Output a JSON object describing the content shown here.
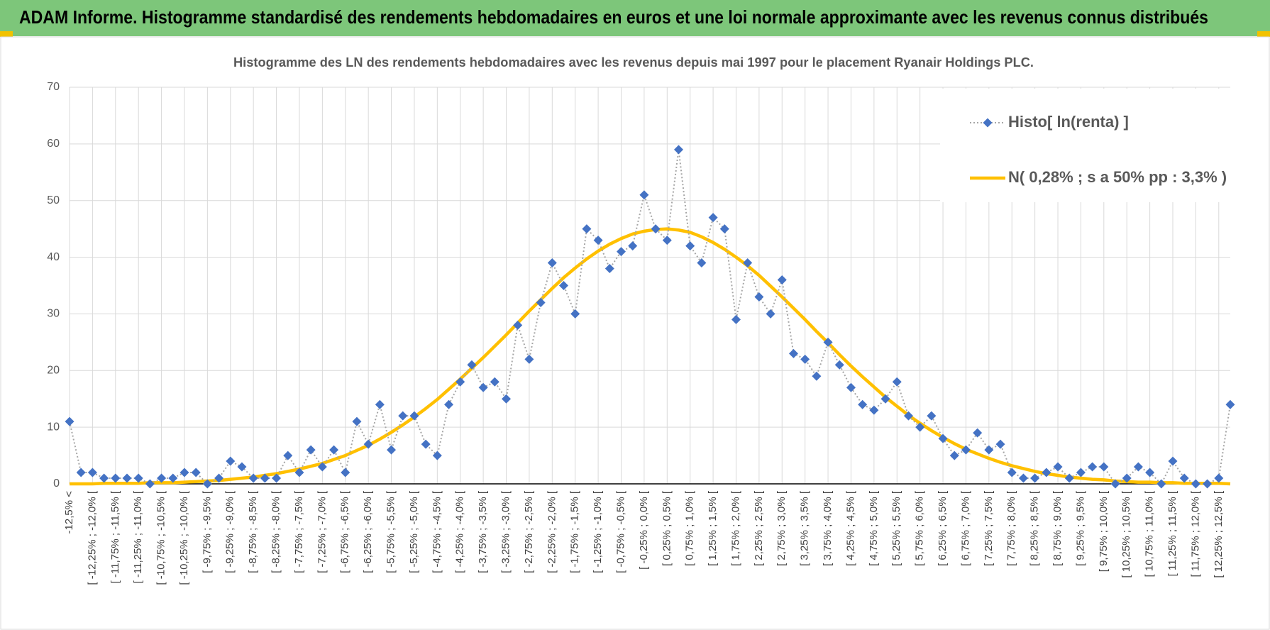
{
  "page_title": "ADAM Informe. Histogramme standardisé des rendements hebdomadaires en euros et une loi normale approximante avec les revenus connus distribués",
  "chart_data": {
    "type": "line",
    "title": "Histogramme des LN des rendements hebdomadaires avec les revenus depuis mai 1997 pour le placement Ryanair Holdings PLC.",
    "categories": [
      "-12,5% <",
      null,
      "[ -12,25% ; -12,0% [",
      null,
      "[ -11,75% ; -11,5% [",
      null,
      "[ -11,25% ; -11,0% [",
      null,
      "[ -10,75% ; -10,5% [",
      null,
      "[ -10,25% ; -10,0% [",
      null,
      "[ -9,75% ; -9,5% [",
      null,
      "[ -9,25% ; -9,0% [",
      null,
      "[ -8,75% ; -8,5% [",
      null,
      "[ -8,25% ; -8,0% [",
      null,
      "[ -7,75% ; -7,5% [",
      null,
      "[ -7,25% ; -7,0% [",
      null,
      "[ -6,75% ; -6,5% [",
      null,
      "[ -6,25% ; -6,0% [",
      null,
      "[ -5,75% ; -5,5% [",
      null,
      "[ -5,25% ; -5,0% [",
      null,
      "[ -4,75% ; -4,5% [",
      null,
      "[ -4,25% ; -4,0% [",
      null,
      "[ -3,75% ; -3,5% [",
      null,
      "[ -3,25% ; -3,0% [",
      null,
      "[ -2,75% ; -2,5% [",
      null,
      "[ -2,25% ; -2,0% [",
      null,
      "[ -1,75% ; -1,5% [",
      null,
      "[ -1,25% ; -1,0% [",
      null,
      "[ -0,75% ; -0,5% [",
      null,
      "[ -0,25% ; 0,0% [",
      null,
      "[ 0,25% ; 0,5% [",
      null,
      "[ 0,75% ; 1,0% [",
      null,
      "[ 1,25% ; 1,5% [",
      null,
      "[ 1,75% ; 2,0% [",
      null,
      "[ 2,25% ; 2,5% [",
      null,
      "[ 2,75% ; 3,0% [",
      null,
      "[ 3,25% ; 3,5% [",
      null,
      "[ 3,75% ; 4,0% [",
      null,
      "[ 4,25% ; 4,5% [",
      null,
      "[ 4,75% ; 5,0% [",
      null,
      "[ 5,25% ; 5,5% [",
      null,
      "[ 5,75% ; 6,0% [",
      null,
      "[ 6,25% ; 6,5% [",
      null,
      "[ 6,75% ; 7,0% [",
      null,
      "[ 7,25% ; 7,5% [",
      null,
      "[ 7,75% ; 8,0% [",
      null,
      "[ 8,25% ; 8,5% [",
      null,
      "[ 8,75% ; 9,0% [",
      null,
      "[ 9,25% ; 9,5% [",
      null,
      "[ 9,75% ; 10,0% [",
      null,
      "[ 10,25% ; 10,5% [",
      null,
      "[ 10,75% ; 11,0% [",
      null,
      "[ 11,25% ; 11,5% [",
      null,
      "[ 11,75% ; 12,0% [",
      null,
      "[ 12,25% ; 12,5% [",
      null
    ],
    "series": [
      {
        "name": "Histo[ ln(renta) ]",
        "color": "#4472c4",
        "line_color": "#a6a6a6",
        "marker": "diamond",
        "values": [
          11,
          2,
          2,
          1,
          1,
          1,
          1,
          0,
          1,
          1,
          2,
          2,
          0,
          1,
          4,
          3,
          1,
          1,
          1,
          5,
          2,
          6,
          3,
          6,
          2,
          11,
          7,
          14,
          6,
          12,
          12,
          7,
          5,
          14,
          18,
          21,
          17,
          18,
          15,
          28,
          22,
          32,
          39,
          35,
          30,
          45,
          43,
          38,
          41,
          42,
          51,
          45,
          43,
          59,
          42,
          39,
          47,
          45,
          29,
          39,
          33,
          30,
          36,
          23,
          22,
          19,
          25,
          21,
          17,
          14,
          13,
          15,
          18,
          12,
          10,
          12,
          8,
          5,
          6,
          9,
          6,
          7,
          2,
          1,
          1,
          2,
          3,
          1,
          2,
          3,
          3,
          0,
          1,
          3,
          2,
          0,
          4,
          1,
          0,
          0,
          1,
          14
        ]
      },
      {
        "name": "N( 0,28% ; s a 50% pp : 3,3% )",
        "color": "#ffc000",
        "marker": "none",
        "values": [
          0.0,
          0.0,
          0.0,
          0.1,
          0.1,
          0.1,
          0.1,
          0.2,
          0.2,
          0.2,
          0.3,
          0.4,
          0.5,
          0.6,
          0.8,
          1.0,
          1.2,
          1.5,
          1.8,
          2.2,
          2.6,
          3.1,
          3.6,
          4.3,
          5.0,
          5.9,
          6.8,
          7.9,
          9.1,
          10.4,
          11.8,
          13.3,
          14.9,
          16.7,
          18.5,
          20.4,
          22.3,
          24.3,
          26.3,
          28.4,
          30.5,
          32.5,
          34.5,
          36.4,
          38.1,
          39.7,
          41.1,
          42.3,
          43.3,
          44.1,
          44.6,
          44.9,
          45.0,
          44.8,
          44.4,
          43.6,
          42.6,
          41.4,
          40.0,
          38.5,
          36.8,
          34.9,
          33.0,
          31.0,
          29.0,
          26.9,
          24.9,
          22.8,
          20.8,
          18.9,
          17.1,
          15.3,
          13.7,
          12.1,
          10.7,
          9.4,
          8.2,
          7.1,
          6.1,
          5.3,
          4.5,
          3.8,
          3.2,
          2.7,
          2.2,
          1.8,
          1.5,
          1.2,
          1.0,
          0.8,
          0.7,
          0.5,
          0.4,
          0.3,
          0.3,
          0.2,
          0.2,
          0.1,
          0.1,
          0.1,
          0.1,
          0.0
        ]
      }
    ],
    "ylim": [
      0,
      70
    ],
    "yticks": [
      0,
      10,
      20,
      30,
      40,
      50,
      60,
      70
    ],
    "grid": true,
    "legend": "upper right"
  }
}
